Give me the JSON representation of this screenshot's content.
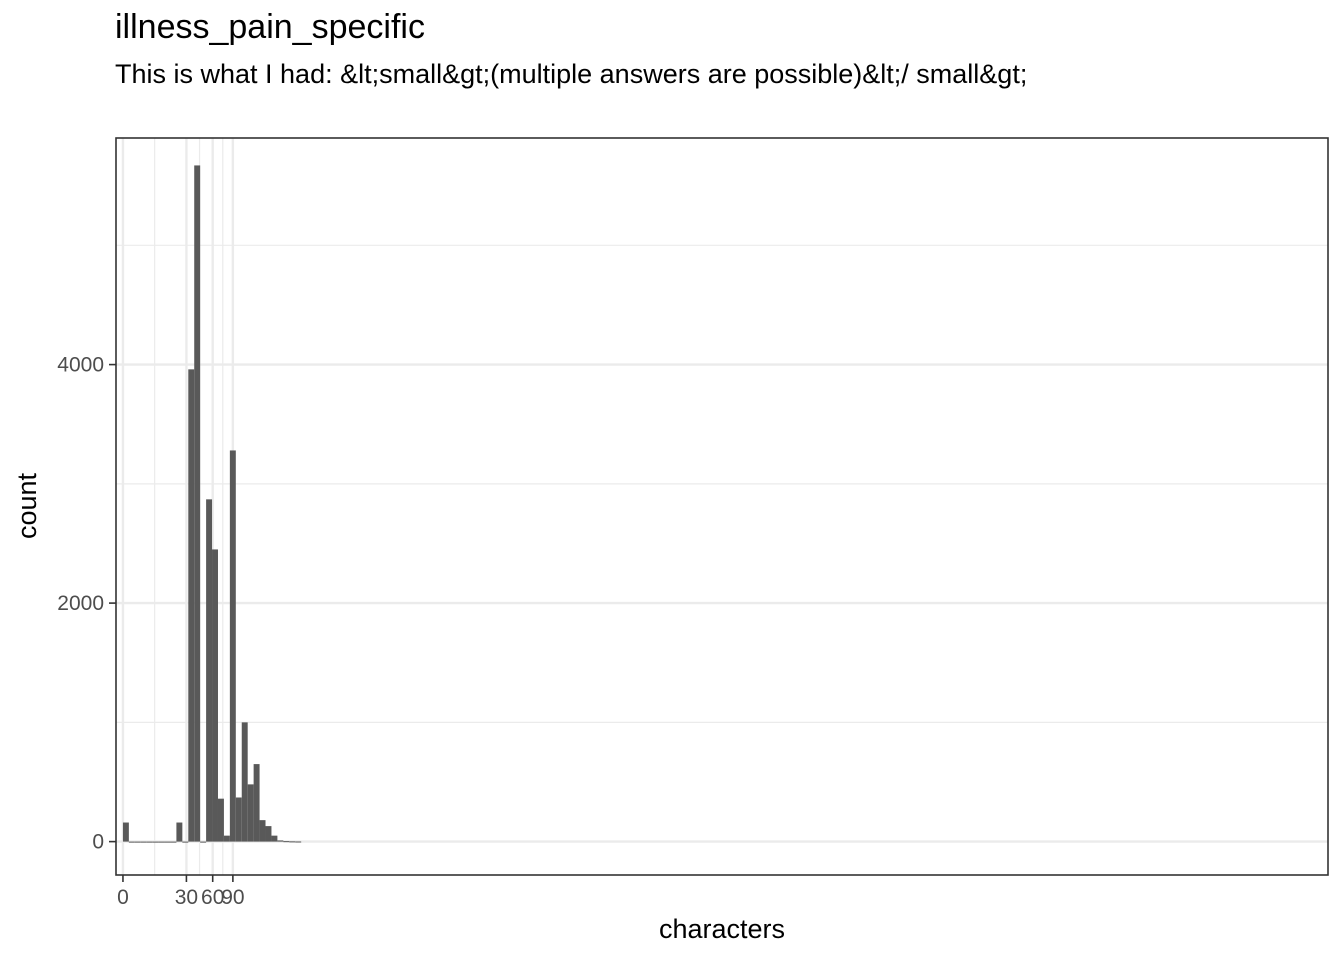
{
  "chart_data": {
    "type": "bar",
    "title": "illness_pain_specific",
    "subtitle": "This is what I had: &lt;small&gt;(multiple answers are possible)&lt;/ small&gt;",
    "xlabel": "characters",
    "ylabel": "count",
    "x_scale": "sqrt",
    "xlim": [
      -0.6,
      104
    ],
    "ylim": [
      -280,
      5900
    ],
    "x_ticks": [
      0,
      30,
      60,
      90
    ],
    "y_ticks": [
      0,
      2000,
      4000
    ],
    "grid": true,
    "bar_color": "#595959",
    "bins": [
      {
        "x_start": 0.0,
        "x_end": 0.26,
        "count": 160
      },
      {
        "x_start": 0.26,
        "x_end": 1.05,
        "count": 0
      },
      {
        "x_start": 1.05,
        "x_end": 2.37,
        "count": 0
      },
      {
        "x_start": 2.37,
        "x_end": 4.2,
        "count": 0
      },
      {
        "x_start": 4.2,
        "x_end": 6.57,
        "count": 0
      },
      {
        "x_start": 6.57,
        "x_end": 9.46,
        "count": 0
      },
      {
        "x_start": 9.46,
        "x_end": 12.88,
        "count": 0
      },
      {
        "x_start": 12.88,
        "x_end": 16.82,
        "count": 0
      },
      {
        "x_start": 16.82,
        "x_end": 21.28,
        "count": 0
      },
      {
        "x_start": 21.28,
        "x_end": 26.28,
        "count": 160
      },
      {
        "x_start": 26.28,
        "x_end": 31.8,
        "count": 0
      },
      {
        "x_start": 31.8,
        "x_end": 37.84,
        "count": 3960
      },
      {
        "x_start": 37.84,
        "x_end": 44.41,
        "count": 5670
      },
      {
        "x_start": 44.41,
        "x_end": 51.5,
        "count": 0
      },
      {
        "x_start": 51.5,
        "x_end": 59.12,
        "count": 2870
      },
      {
        "x_start": 59.12,
        "x_end": 67.27,
        "count": 2450
      },
      {
        "x_start": 67.27,
        "x_end": 75.94,
        "count": 360
      },
      {
        "x_start": 75.94,
        "x_end": 85.14,
        "count": 50
      },
      {
        "x_start": 85.14,
        "x_end": 94.86,
        "count": 3280
      },
      {
        "x_start": 94.86,
        "x_end": 105.11,
        "count": 370
      },
      {
        "x_start": 105.11,
        "x_end": 115.89,
        "count": 1000
      },
      {
        "x_start": 115.89,
        "x_end": 127.19,
        "count": 480
      },
      {
        "x_start": 127.19,
        "x_end": 139.02,
        "count": 650
      },
      {
        "x_start": 139.02,
        "x_end": 151.38,
        "count": 180
      },
      {
        "x_start": 151.38,
        "x_end": 164.26,
        "count": 130
      },
      {
        "x_start": 164.26,
        "x_end": 177.67,
        "count": 50
      },
      {
        "x_start": 177.67,
        "x_end": 191.61,
        "count": 10
      },
      {
        "x_start": 191.61,
        "x_end": 206.08,
        "count": 4
      },
      {
        "x_start": 206.08,
        "x_end": 221.07,
        "count": 2
      },
      {
        "x_start": 221.07,
        "x_end": 236.59,
        "count": 1
      }
    ]
  }
}
